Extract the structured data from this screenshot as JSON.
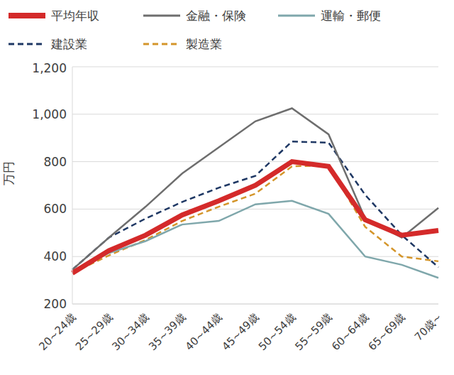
{
  "chart_data": {
    "type": "line",
    "y_label": "万円",
    "categories": [
      "20~24歳",
      "25~29歳",
      "30~34歳",
      "35~39歳",
      "40~44歳",
      "45~49歳",
      "50~54歳",
      "55~59歳",
      "60~64歳",
      "65~69歳",
      "70歳~"
    ],
    "series": [
      {
        "name": "平均年収",
        "color": "#d42a2a",
        "line_style": "solid",
        "values": [
          330,
          425,
          490,
          575,
          635,
          700,
          800,
          780,
          555,
          490,
          510
        ]
      },
      {
        "name": "金融・保険",
        "color": "#6e6e6e",
        "line_style": "solid",
        "values": [
          345,
          480,
          610,
          750,
          860,
          970,
          1025,
          915,
          560,
          480,
          605
        ]
      },
      {
        "name": "運輸・郵便",
        "color": "#7fa7ab",
        "line_style": "solid",
        "values": [
          335,
          415,
          465,
          535,
          550,
          620,
          635,
          580,
          400,
          365,
          310
        ]
      },
      {
        "name": "建設業",
        "color": "#1f3864",
        "line_style": "dashed",
        "values": [
          345,
          480,
          560,
          630,
          690,
          740,
          885,
          880,
          660,
          490,
          355
        ]
      },
      {
        "name": "製造業",
        "color": "#d4952a",
        "line_style": "dashed",
        "values": [
          330,
          405,
          470,
          550,
          610,
          665,
          780,
          785,
          525,
          400,
          380
        ]
      }
    ],
    "ylim": [
      200,
      1200
    ],
    "yticks": [
      200,
      400,
      600,
      800,
      {
        "value": 1000,
        "label": "1,000"
      },
      {
        "value": 1200,
        "label": "1,200"
      }
    ],
    "grid": true,
    "legend": "top",
    "marker": "none"
  }
}
